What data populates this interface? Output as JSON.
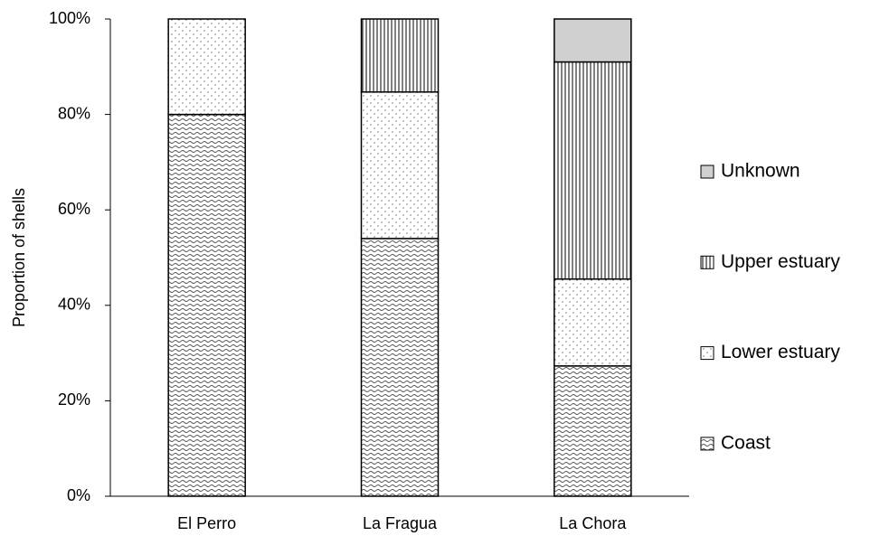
{
  "chart_data": {
    "type": "stacked_bar",
    "y_label": "Proportion of shells",
    "categories": [
      "El Perro",
      "La Fragua",
      "La Chora"
    ],
    "series": [
      {
        "name": "Coast",
        "color": "#555555",
        "pattern": "waves",
        "values": [
          80,
          54,
          27.3
        ]
      },
      {
        "name": "Lower estuary",
        "color": "#777777",
        "pattern": "dots",
        "values": [
          20,
          30.7,
          18.2
        ]
      },
      {
        "name": "Upper estuary",
        "color": "#000000",
        "pattern": "vlines",
        "values": [
          0,
          15.3,
          45.5
        ]
      },
      {
        "name": "Unknown",
        "color": "#d0d0d0",
        "pattern": "solid",
        "values": [
          0,
          0,
          9
        ]
      }
    ],
    "ylim": [
      0,
      100
    ],
    "yticks": [
      {
        "value": 0,
        "label": "0%"
      },
      {
        "value": 20,
        "label": "20%"
      },
      {
        "value": 40,
        "label": "40%"
      },
      {
        "value": 60,
        "label": "60%"
      },
      {
        "value": 80,
        "label": "80%"
      },
      {
        "value": 100,
        "label": "100%"
      }
    ],
    "legend": "right"
  }
}
